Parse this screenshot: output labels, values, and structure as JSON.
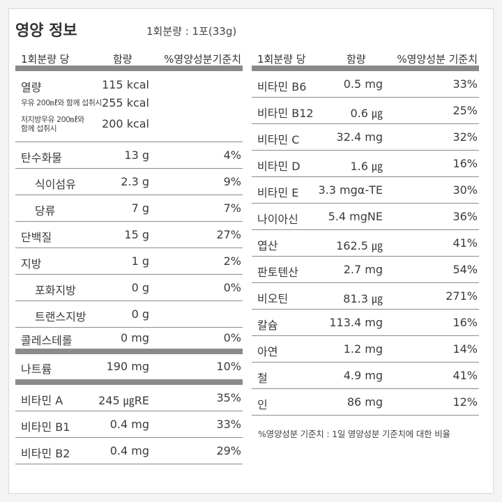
{
  "header": {
    "title": "영양 정보",
    "serving": "1회분량 : 1포(33g)"
  },
  "table_header": {
    "per": "1회분량 당",
    "amount": "함량",
    "dv": "%영양성분기준치",
    "dv_right": "%영양성분 기준치"
  },
  "energy": {
    "label": "열량",
    "value": "115 kcal",
    "milk_label": "우유 200㎖와 함께 섭취시",
    "milk_value": "255 kcal",
    "lowfat_label_1": "저지방우유 200㎖와",
    "lowfat_label_2": "함께 섭취시",
    "lowfat_value": "200 kcal"
  },
  "left_rows": [
    {
      "name": "탄수화물",
      "amount": "13 g",
      "dv": "4%"
    },
    {
      "name": "식이섬유",
      "amount": "2.3 g",
      "dv": "9%"
    },
    {
      "name": "당류",
      "amount": "7 g",
      "dv": "7%"
    },
    {
      "name": "단백질",
      "amount": "15 g",
      "dv": "27%"
    },
    {
      "name": "지방",
      "amount": "1 g",
      "dv": "2%"
    },
    {
      "name": "포화지방",
      "amount": "0 g",
      "dv": "0%"
    },
    {
      "name": "트랜스지방",
      "amount": "0 g",
      "dv": ""
    },
    {
      "name": "콜레스테롤",
      "amount": "0 mg",
      "dv": "0%"
    },
    {
      "name": "나트륨",
      "amount": "190 mg",
      "dv": "10%"
    },
    {
      "name": "비타민 A",
      "amount": "245 ㎍RE",
      "dv": "35%"
    },
    {
      "name": "비타민 B1",
      "amount": "0.4 mg",
      "dv": "33%"
    },
    {
      "name": "비타민 B2",
      "amount": "0.4 mg",
      "dv": "29%"
    }
  ],
  "right_rows": [
    {
      "name": "비타민 B6",
      "amount": "0.5 mg",
      "dv": "33%"
    },
    {
      "name": "비타민 B12",
      "amount": "0.6 ㎍",
      "dv": "25%"
    },
    {
      "name": "비타민 C",
      "amount": "32.4 mg",
      "dv": "32%"
    },
    {
      "name": "비타민 D",
      "amount": "1.6 ㎍",
      "dv": "16%"
    },
    {
      "name": "비타민 E",
      "amount": "3.3 mgα-TE",
      "dv": "30%"
    },
    {
      "name": "나이아신",
      "amount": "5.4 mgNE",
      "dv": "36%"
    },
    {
      "name": "엽산",
      "amount": "162.5 ㎍",
      "dv": "41%"
    },
    {
      "name": "판토텐산",
      "amount": "2.7 mg",
      "dv": "54%"
    },
    {
      "name": "비오틴",
      "amount": "81.3 ㎍",
      "dv": "271%"
    },
    {
      "name": "칼슘",
      "amount": "113.4 mg",
      "dv": "16%"
    },
    {
      "name": "아연",
      "amount": "1.2 mg",
      "dv": "14%"
    },
    {
      "name": "철",
      "amount": "4.9 mg",
      "dv": "41%"
    },
    {
      "name": "인",
      "amount": "86 mg",
      "dv": "12%"
    }
  ],
  "footnote": "%영양성분 기준치 : 1일 영양성분 기준치에 대한 비율"
}
